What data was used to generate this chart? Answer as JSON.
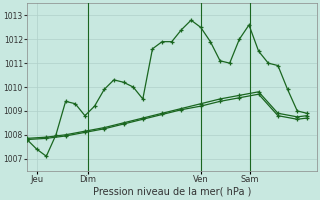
{
  "background_color": "#c8e8e0",
  "grid_color": "#b0d0ca",
  "line_color": "#1a6620",
  "title": "Pression niveau de la mer( hPa )",
  "ylim": [
    1006.5,
    1013.5
  ],
  "yticks": [
    1007,
    1008,
    1009,
    1010,
    1011,
    1012,
    1013
  ],
  "xlabel_days": [
    "Jeu",
    "Dim",
    "Ven",
    "Sam"
  ],
  "vline_positions": [
    0.21,
    0.6,
    0.77
  ],
  "n_points": 60,
  "series1_x": [
    0,
    2,
    4,
    6,
    8,
    10,
    12,
    14,
    16,
    18,
    20,
    22,
    24,
    26,
    28,
    30,
    32,
    34,
    36,
    38,
    40,
    42,
    44,
    46,
    48,
    50,
    52,
    54,
    56,
    58
  ],
  "series1_y": [
    1007.8,
    1007.4,
    1007.1,
    1008.0,
    1009.4,
    1009.3,
    1008.8,
    1009.2,
    1009.9,
    1010.3,
    1010.2,
    1010.0,
    1009.5,
    1011.6,
    1011.9,
    1011.9,
    1012.4,
    1012.8,
    1012.5,
    1011.9,
    1011.1,
    1011.0,
    1012.0,
    1012.6,
    1011.5,
    1011.0,
    1010.9,
    1009.9,
    1009.0,
    1008.9
  ],
  "series2_x": [
    0,
    4,
    8,
    12,
    16,
    20,
    24,
    28,
    32,
    36,
    40,
    44,
    48,
    52,
    56,
    58
  ],
  "series2_y": [
    1007.85,
    1007.9,
    1008.0,
    1008.15,
    1008.3,
    1008.5,
    1008.7,
    1008.9,
    1009.1,
    1009.3,
    1009.5,
    1009.65,
    1009.8,
    1008.9,
    1008.75,
    1008.8
  ],
  "series3_x": [
    0,
    4,
    8,
    12,
    16,
    20,
    24,
    28,
    32,
    36,
    40,
    44,
    48,
    52,
    56,
    58
  ],
  "series3_y": [
    1007.8,
    1007.85,
    1007.95,
    1008.1,
    1008.25,
    1008.45,
    1008.65,
    1008.85,
    1009.05,
    1009.2,
    1009.4,
    1009.55,
    1009.7,
    1008.8,
    1008.65,
    1008.7
  ],
  "xlabel_tick_x": [
    0.035,
    0.21,
    0.6,
    0.77
  ]
}
